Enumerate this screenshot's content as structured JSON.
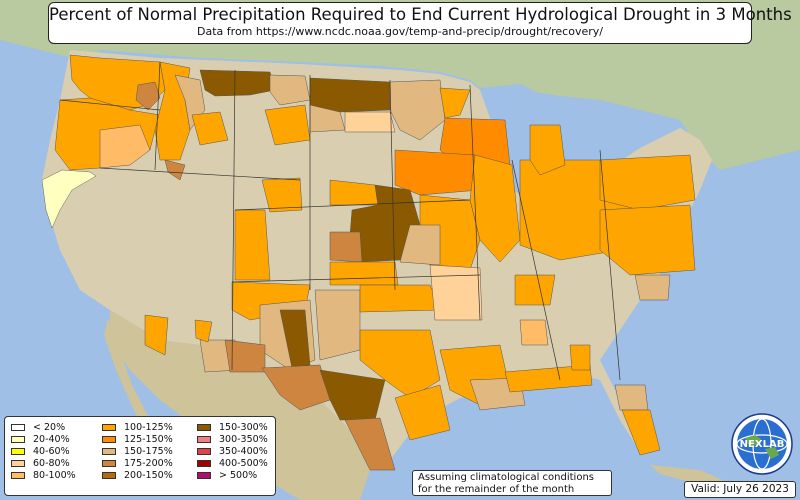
{
  "title": {
    "main": "Percent of Normal Precipitation Required to End Current Hydrological Drought in 3 Months",
    "sub": "Data from https://www.ncdc.noaa.gov/temp-and-precip/drought/recovery/"
  },
  "legend": {
    "items": [
      {
        "label": "< 20%",
        "color": "#ffffff"
      },
      {
        "label": "20-40%",
        "color": "#ffffbf"
      },
      {
        "label": "40-60%",
        "color": "#ffff00"
      },
      {
        "label": "60-80%",
        "color": "#ffd29a"
      },
      {
        "label": "80-100%",
        "color": "#ffbb66"
      },
      {
        "label": "100-125%",
        "color": "#ffa500"
      },
      {
        "label": "125-150%",
        "color": "#ff8c00"
      },
      {
        "label": "150-175%",
        "color": "#e0b880"
      },
      {
        "label": "175-200%",
        "color": "#cd853f"
      },
      {
        "label": "200-150%",
        "color": "#b8690f"
      },
      {
        "label": "150-300%",
        "color": "#8b5a00"
      },
      {
        "label": "300-350%",
        "color": "#f08080"
      },
      {
        "label": "350-400%",
        "color": "#dd4444"
      },
      {
        "label": "400-500%",
        "color": "#a00000"
      },
      {
        "label": "> 500%",
        "color": "#b0106a"
      }
    ]
  },
  "note": {
    "line1": "Assuming climatological conditions",
    "line2": "for the remainder of the month"
  },
  "valid": "Valid: July 26 2023",
  "logo": {
    "text": "NEXLAB"
  },
  "colors": {
    "water": "#9fbfe6",
    "land": "#d9cfb0",
    "no_drought": "#ccc8a8"
  }
}
